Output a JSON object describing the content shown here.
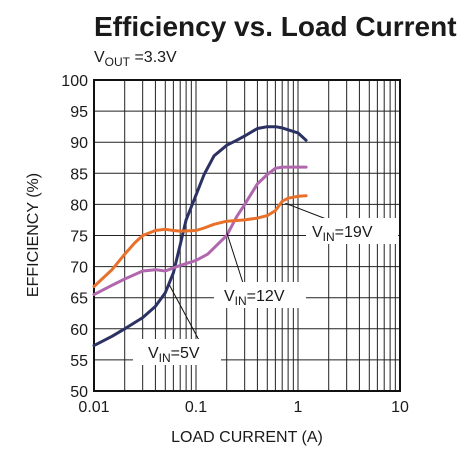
{
  "chart_data": {
    "type": "line",
    "title": "Efficiency vs. Load Current",
    "subtitle": {
      "prefix": "V",
      "subscript": "OUT",
      "suffix": " =3.3V"
    },
    "xlabel": "LOAD CURRENT (A)",
    "ylabel": "EFFICIENCY (%)",
    "x_scale": "log",
    "xlim": [
      0.01,
      10
    ],
    "ylim": [
      50,
      100
    ],
    "x_ticks": [
      {
        "value": 0.01,
        "label": "0.01"
      },
      {
        "value": 0.1,
        "label": "0.1"
      },
      {
        "value": 1,
        "label": "1"
      },
      {
        "value": 10,
        "label": "10"
      }
    ],
    "y_ticks": [
      50,
      55,
      60,
      65,
      70,
      75,
      80,
      85,
      90,
      95,
      100
    ],
    "grid": true,
    "series": [
      {
        "name": "VIN=5V",
        "label": {
          "prefix": "V",
          "subscript": "IN",
          "suffix": "=5V"
        },
        "color": "#2b3263",
        "x": [
          0.01,
          0.015,
          0.02,
          0.03,
          0.04,
          0.05,
          0.06,
          0.07,
          0.08,
          0.1,
          0.12,
          0.15,
          0.2,
          0.25,
          0.3,
          0.4,
          0.5,
          0.6,
          0.7,
          0.8,
          1.0,
          1.2
        ],
        "y": [
          57.3,
          58.8,
          60.0,
          61.8,
          63.6,
          65.8,
          69.0,
          73.5,
          77.5,
          81.5,
          84.8,
          87.8,
          89.5,
          90.3,
          91.0,
          92.2,
          92.5,
          92.5,
          92.3,
          92.0,
          91.5,
          90.3
        ]
      },
      {
        "name": "VIN=12V",
        "label": {
          "prefix": "V",
          "subscript": "IN",
          "suffix": "=12V"
        },
        "color": "#b067ad",
        "x": [
          0.01,
          0.015,
          0.02,
          0.03,
          0.04,
          0.05,
          0.07,
          0.1,
          0.13,
          0.15,
          0.2,
          0.25,
          0.3,
          0.4,
          0.5,
          0.6,
          0.7,
          0.8,
          1.0,
          1.2
        ],
        "y": [
          65.5,
          67.0,
          68.0,
          69.3,
          69.5,
          69.3,
          70.2,
          71.0,
          72.0,
          73.0,
          75.0,
          78.0,
          80.0,
          83.3,
          84.8,
          85.8,
          86.0,
          86.0,
          86.0,
          86.0
        ]
      },
      {
        "name": "VIN=19V",
        "label": {
          "prefix": "V",
          "subscript": "IN",
          "suffix": "=19V"
        },
        "color": "#e8702b",
        "x": [
          0.01,
          0.015,
          0.02,
          0.025,
          0.03,
          0.04,
          0.05,
          0.06,
          0.07,
          0.1,
          0.12,
          0.15,
          0.2,
          0.3,
          0.4,
          0.5,
          0.6,
          0.7,
          0.8,
          1.0,
          1.2
        ],
        "y": [
          66.8,
          69.5,
          72.0,
          73.8,
          75.0,
          75.8,
          76.0,
          75.8,
          75.7,
          75.8,
          76.2,
          76.8,
          77.3,
          77.5,
          77.8,
          78.2,
          79.0,
          80.5,
          81.0,
          81.3,
          81.4
        ]
      }
    ]
  }
}
